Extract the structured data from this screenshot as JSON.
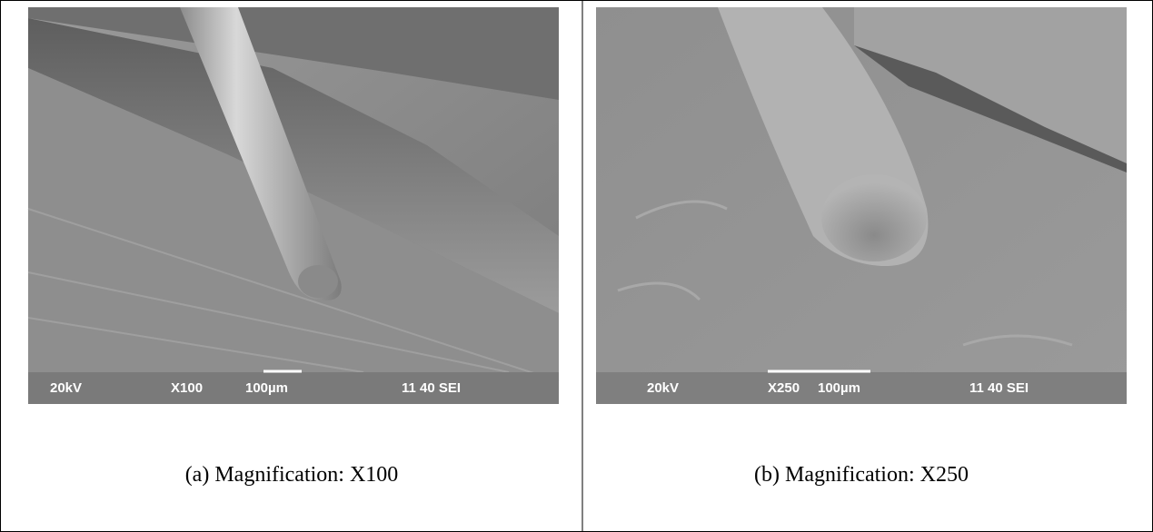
{
  "panels": [
    {
      "image_labels": {
        "voltage": "20kV",
        "magnification": "X100",
        "scale": "100µm",
        "info": "11 40 SEI"
      },
      "caption": "(a) Magnification: X100"
    },
    {
      "image_labels": {
        "voltage": "20kV",
        "magnification": "X250",
        "scale": "100µm",
        "info": "11 40 SEI"
      },
      "caption": "(b) Magnification: X250"
    }
  ]
}
